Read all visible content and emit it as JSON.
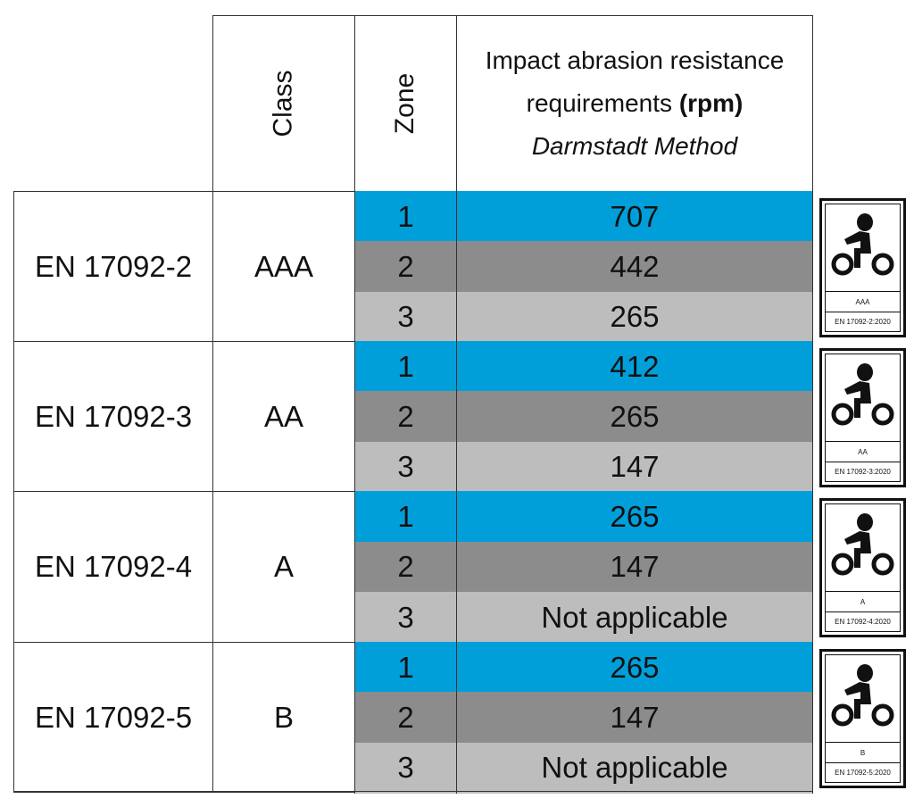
{
  "header": {
    "class": "Class",
    "zone": "Zone",
    "requirement_line1": "Impact abrasion resistance",
    "requirement_line2": "requirements ",
    "requirement_unit": "(rpm)",
    "method": "Darmstadt Method"
  },
  "colors": {
    "zone1": "#009fda",
    "zone2": "#8c8c8c",
    "zone3": "#bdbdbd"
  },
  "groups": [
    {
      "standard": "EN 17092-2",
      "class": "AAA",
      "label_std": "EN 17092-2:2020",
      "zones": [
        {
          "zone": "1",
          "value": "707"
        },
        {
          "zone": "2",
          "value": "442"
        },
        {
          "zone": "3",
          "value": "265"
        }
      ]
    },
    {
      "standard": "EN 17092-3",
      "class": "AA",
      "label_std": "EN 17092-3:2020",
      "zones": [
        {
          "zone": "1",
          "value": "412"
        },
        {
          "zone": "2",
          "value": "265"
        },
        {
          "zone": "3",
          "value": "147"
        }
      ]
    },
    {
      "standard": "EN 17092-4",
      "class": "A",
      "label_std": "EN 17092-4:2020",
      "zones": [
        {
          "zone": "1",
          "value": "265"
        },
        {
          "zone": "2",
          "value": "147"
        },
        {
          "zone": "3",
          "value": "Not applicable"
        }
      ]
    },
    {
      "standard": "EN 17092-5",
      "class": "B",
      "label_std": "EN 17092-5:2020",
      "zones": [
        {
          "zone": "1",
          "value": "265"
        },
        {
          "zone": "2",
          "value": "147"
        },
        {
          "zone": "3",
          "value": "Not applicable"
        }
      ]
    }
  ]
}
